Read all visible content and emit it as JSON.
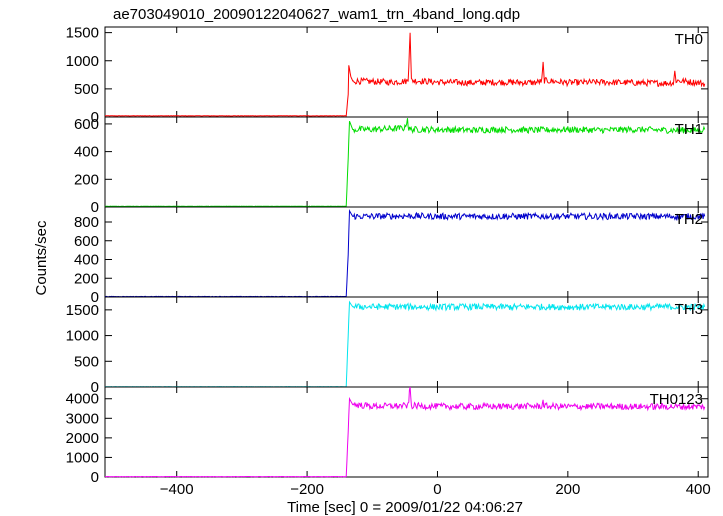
{
  "chart_data": {
    "type": "line",
    "title": "ae703049010_20090122040627_wam1_trn_4band_long.qdp",
    "xlabel": "Time [sec] 0 = 2009/01/22 04:06:27",
    "ylabel": "Counts/sec",
    "xlim": [
      -510,
      415
    ],
    "x_ticks": [
      -400,
      -200,
      0,
      200,
      400
    ],
    "x_tick_labels": [
      "−400",
      "−200",
      "0",
      "200",
      "400"
    ],
    "grid": false,
    "series_colors": [
      "#ff0000",
      "#00dd00",
      "#0000cc",
      "#00e5ee",
      "#ee00ee"
    ],
    "panels": [
      {
        "name": "TH0",
        "color": "#ff0000",
        "ylim": [
          0,
          1600
        ],
        "ticks": [
          0,
          500,
          1000,
          1500
        ],
        "tick_labels": [
          "0",
          "500",
          "1000",
          "1500"
        ],
        "points": [
          [
            -510,
            20
          ],
          [
            -140,
            20
          ],
          [
            -137,
            400
          ],
          [
            -136,
            920
          ],
          [
            -133,
            720
          ],
          [
            -130,
            640
          ],
          [
            -100,
            630
          ],
          [
            -70,
            620
          ],
          [
            -45,
            640
          ],
          [
            -42,
            1530
          ],
          [
            -40,
            650
          ],
          [
            0,
            620
          ],
          [
            50,
            610
          ],
          [
            100,
            620
          ],
          [
            150,
            610
          ],
          [
            160,
            640
          ],
          [
            162,
            940
          ],
          [
            164,
            650
          ],
          [
            200,
            610
          ],
          [
            250,
            620
          ],
          [
            300,
            610
          ],
          [
            350,
            600
          ],
          [
            362,
            610
          ],
          [
            364,
            800
          ],
          [
            366,
            650
          ],
          [
            400,
            610
          ],
          [
            410,
            590
          ]
        ]
      },
      {
        "name": "TH1",
        "color": "#00dd00",
        "ylim": [
          0,
          650
        ],
        "ticks": [
          0,
          200,
          400,
          600
        ],
        "tick_labels": [
          "0",
          "200",
          "400",
          "600"
        ],
        "points": [
          [
            -510,
            5
          ],
          [
            -140,
            5
          ],
          [
            -137,
            350
          ],
          [
            -135,
            620
          ],
          [
            -130,
            560
          ],
          [
            -100,
            560
          ],
          [
            -50,
            570
          ],
          [
            -46,
            640
          ],
          [
            -44,
            560
          ],
          [
            0,
            560
          ],
          [
            50,
            555
          ],
          [
            100,
            560
          ],
          [
            150,
            555
          ],
          [
            200,
            560
          ],
          [
            250,
            555
          ],
          [
            300,
            560
          ],
          [
            350,
            555
          ],
          [
            400,
            555
          ],
          [
            410,
            560
          ]
        ]
      },
      {
        "name": "TH2",
        "color": "#0000cc",
        "ylim": [
          0,
          960
        ],
        "ticks": [
          0,
          200,
          400,
          600,
          800
        ],
        "tick_labels": [
          "0",
          "200",
          "400",
          "600",
          "800"
        ],
        "points": [
          [
            -510,
            5
          ],
          [
            -140,
            5
          ],
          [
            -137,
            450
          ],
          [
            -135,
            920
          ],
          [
            -130,
            860
          ],
          [
            -100,
            860
          ],
          [
            -50,
            865
          ],
          [
            0,
            860
          ],
          [
            50,
            860
          ],
          [
            100,
            860
          ],
          [
            150,
            860
          ],
          [
            200,
            860
          ],
          [
            250,
            860
          ],
          [
            300,
            860
          ],
          [
            350,
            860
          ],
          [
            400,
            860
          ],
          [
            410,
            860
          ]
        ]
      },
      {
        "name": "TH3",
        "color": "#00e5ee",
        "ylim": [
          0,
          1750
        ],
        "ticks": [
          0,
          500,
          1000,
          1500
        ],
        "tick_labels": [
          "0",
          "500",
          "1000",
          "1500"
        ],
        "points": [
          [
            -510,
            5
          ],
          [
            -140,
            5
          ],
          [
            -137,
            1000
          ],
          [
            -135,
            1650
          ],
          [
            -130,
            1560
          ],
          [
            -100,
            1560
          ],
          [
            -50,
            1560
          ],
          [
            0,
            1555
          ],
          [
            50,
            1560
          ],
          [
            100,
            1555
          ],
          [
            150,
            1560
          ],
          [
            200,
            1555
          ],
          [
            250,
            1560
          ],
          [
            300,
            1555
          ],
          [
            350,
            1560
          ],
          [
            400,
            1555
          ],
          [
            410,
            1560
          ]
        ]
      },
      {
        "name": "TH0123",
        "color": "#ee00ee",
        "ylim": [
          0,
          4600
        ],
        "ticks": [
          0,
          1000,
          2000,
          3000,
          4000
        ],
        "tick_labels": [
          "0",
          "1000",
          "2000",
          "3000",
          "4000"
        ],
        "points": [
          [
            -510,
            20
          ],
          [
            -140,
            20
          ],
          [
            -137,
            2300
          ],
          [
            -135,
            4000
          ],
          [
            -130,
            3700
          ],
          [
            -100,
            3620
          ],
          [
            -45,
            3640
          ],
          [
            -42,
            4600
          ],
          [
            -40,
            3640
          ],
          [
            0,
            3610
          ],
          [
            50,
            3600
          ],
          [
            100,
            3610
          ],
          [
            160,
            3620
          ],
          [
            162,
            3850
          ],
          [
            164,
            3620
          ],
          [
            200,
            3600
          ],
          [
            250,
            3610
          ],
          [
            300,
            3600
          ],
          [
            350,
            3600
          ],
          [
            400,
            3600
          ],
          [
            410,
            3590
          ]
        ]
      }
    ]
  }
}
